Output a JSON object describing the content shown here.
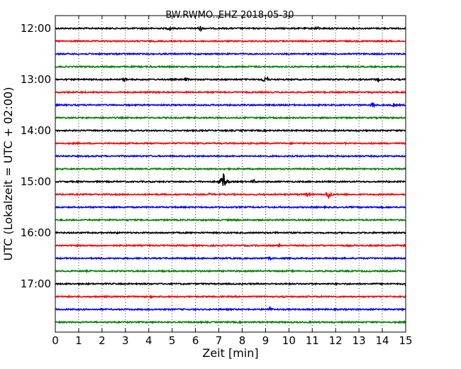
{
  "chart_data": {
    "type": "line",
    "title": "BW.RWMO..EHZ 2018-05-30",
    "xlabel": "Zeit  [min]",
    "ylabel": "UTC (Lokalzeit = UTC + 02:00)",
    "xlim": [
      0,
      15
    ],
    "x_ticks": [
      "0",
      "1",
      "2",
      "3",
      "4",
      "5",
      "6",
      "7",
      "8",
      "9",
      "10",
      "11",
      "12",
      "13",
      "14",
      "15"
    ],
    "y_tick_labels": [
      "12:00",
      "13:00",
      "14:00",
      "15:00",
      "16:00",
      "17:00"
    ],
    "grid": "vertical dotted",
    "trace_colors": [
      "#000000",
      "#ff0000",
      "#0000ff",
      "#008000"
    ],
    "traces": [
      {
        "start": "12:00",
        "color": "#000000",
        "events": [
          {
            "min": 4.9,
            "amp": 3
          },
          {
            "min": 6.2,
            "amp": 4
          },
          {
            "min": 11.2,
            "amp": 3
          }
        ]
      },
      {
        "start": "12:15",
        "color": "#ff0000",
        "events": []
      },
      {
        "start": "12:30",
        "color": "#0000ff",
        "events": []
      },
      {
        "start": "12:45",
        "color": "#008000",
        "events": [
          {
            "min": 4.1,
            "amp": 2
          }
        ]
      },
      {
        "start": "13:00",
        "color": "#000000",
        "events": [
          {
            "min": 3.0,
            "amp": 3
          },
          {
            "min": 5.6,
            "amp": 3
          },
          {
            "min": 9.0,
            "amp": 6
          },
          {
            "min": 13.8,
            "amp": 3
          }
        ]
      },
      {
        "start": "13:15",
        "color": "#ff0000",
        "events": []
      },
      {
        "start": "13:30",
        "color": "#0000ff",
        "events": [
          {
            "min": 13.6,
            "amp": 4
          },
          {
            "min": 14.5,
            "amp": 3
          }
        ]
      },
      {
        "start": "13:45",
        "color": "#008000",
        "events": []
      },
      {
        "start": "14:00",
        "color": "#000000",
        "events": [
          {
            "min": 8.0,
            "amp": 2
          }
        ]
      },
      {
        "start": "14:15",
        "color": "#ff0000",
        "events": [
          {
            "min": 12.4,
            "amp": 2
          }
        ]
      },
      {
        "start": "14:30",
        "color": "#0000ff",
        "events": []
      },
      {
        "start": "14:45",
        "color": "#008000",
        "events": []
      },
      {
        "start": "15:00",
        "color": "#000000",
        "events": [
          {
            "min": 7.2,
            "amp": 12
          },
          {
            "min": 8.5,
            "amp": 3
          }
        ]
      },
      {
        "start": "15:15",
        "color": "#ff0000",
        "events": [
          {
            "min": 6.6,
            "amp": 2
          },
          {
            "min": 10.8,
            "amp": 3
          },
          {
            "min": 11.7,
            "amp": 6
          }
        ]
      },
      {
        "start": "15:30",
        "color": "#0000ff",
        "events": []
      },
      {
        "start": "15:45",
        "color": "#008000",
        "events": [
          {
            "min": 7.8,
            "amp": 2
          }
        ]
      },
      {
        "start": "16:00",
        "color": "#000000",
        "events": [
          {
            "min": 2.6,
            "amp": 2
          },
          {
            "min": 9.5,
            "amp": 2
          }
        ]
      },
      {
        "start": "16:15",
        "color": "#ff0000",
        "events": [
          {
            "min": 9.6,
            "amp": 3
          }
        ]
      },
      {
        "start": "16:30",
        "color": "#0000ff",
        "events": [
          {
            "min": 9.2,
            "amp": 2
          }
        ]
      },
      {
        "start": "16:45",
        "color": "#008000",
        "events": []
      },
      {
        "start": "17:00",
        "color": "#000000",
        "events": [
          {
            "min": 15.0,
            "amp": 3
          }
        ]
      },
      {
        "start": "17:15",
        "color": "#ff0000",
        "events": [
          {
            "min": 4.1,
            "amp": 2
          }
        ]
      },
      {
        "start": "17:30",
        "color": "#0000ff",
        "events": [
          {
            "min": 9.2,
            "amp": 3
          }
        ]
      },
      {
        "start": "17:45",
        "color": "#008000",
        "events": []
      }
    ]
  }
}
